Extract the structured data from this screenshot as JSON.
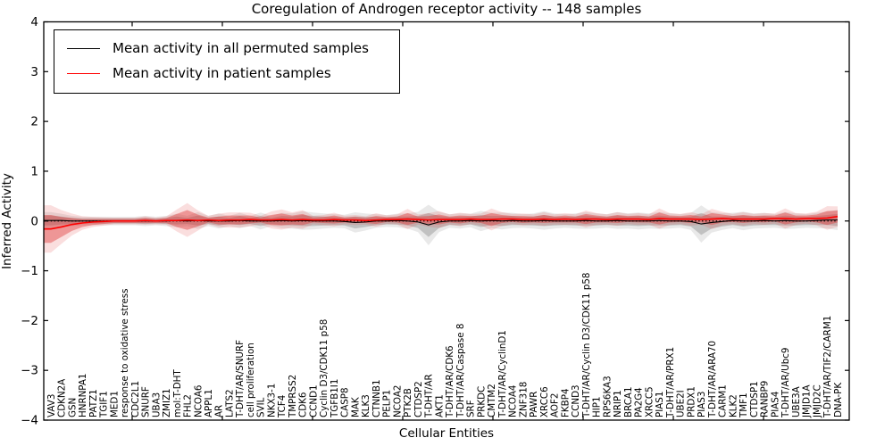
{
  "figure": {
    "title": "Coregulation of Androgen receptor activity -- 148 samples",
    "xlabel": "Cellular Entities",
    "ylabel": "Inferred Activity"
  },
  "legend": {
    "entries": [
      {
        "label": "Mean activity in all permuted samples",
        "color": "#000000"
      },
      {
        "label": "Mean activity in patient samples",
        "color": "#ff0000"
      }
    ]
  },
  "chart_data": {
    "type": "line",
    "title": "Coregulation of Androgen receptor activity -- 148 samples",
    "xlabel": "Cellular Entities",
    "ylabel": "Inferred Activity",
    "ylim": [
      -4,
      4
    ],
    "ytick_labels": [
      "4",
      "3",
      "2",
      "1",
      "0",
      "−1",
      "−2",
      "−3",
      "−4"
    ],
    "grid": false,
    "legend_position": "upper left",
    "zero_line_style": "dotted",
    "sample_count": 148,
    "categories": [
      "VAV3",
      "CDKN2A",
      "GSN",
      "HNRNPA1",
      "PATZ1",
      "TGIF1",
      "MED1",
      "response to oxidative stress",
      "CDC2L1",
      "SNURF",
      "UBA3",
      "ZMIZ1",
      "mol:T-DHT",
      "FHL2",
      "NCOA6",
      "APPL1",
      "AR",
      "LATS2",
      "T-DHT/AR/SNURF",
      "cell proliferation",
      "SVIL",
      "NKX3-1",
      "TCF4",
      "TMPRSS2",
      "CDK6",
      "CCND1",
      "Cyclin D3/CDK11 p58",
      "TGFB1I1",
      "CASP8",
      "MAK",
      "KLK3",
      "CTNNB1",
      "PELP1",
      "NCOA2",
      "PTK2B",
      "CTDSP2",
      "T-DHT/AR",
      "AKT1",
      "T-DHT/AR/CDK6",
      "T-DHT/AR/Caspase 8",
      "SRF",
      "PRKDC",
      "CMTM2",
      "T-DHT/AR/CyclinD1",
      "NCOA4",
      "ZNF318",
      "PAWR",
      "XRCC6",
      "AOF2",
      "FKBP4",
      "CCND3",
      "T-DHT/AR/Cyclin D3/CDK11 p58",
      "HIP1",
      "RPS6KA3",
      "NRIP1",
      "BRCA1",
      "PA2G4",
      "XRCC5",
      "PIAS1",
      "T-DHT/AR/PRX1",
      "UBE2I",
      "PRDX1",
      "PIAS3",
      "T-DHT/AR/ARA70",
      "CARM1",
      "KLK2",
      "TMF1",
      "CTDSP1",
      "RANBP9",
      "PIAS4",
      "T-DHT/AR/Ubc9",
      "UBE3A",
      "JMJD1A",
      "JMJD2C",
      "T-DHT/AR/TIF2/CARM1",
      "DNA-PK"
    ],
    "series": [
      {
        "name": "Mean activity in all permuted samples",
        "color": "#000000",
        "band_color": "#999999",
        "values": [
          0.01,
          0.01,
          0,
          0,
          0,
          0,
          0,
          0,
          0,
          0,
          0,
          0,
          0.01,
          0,
          0.01,
          0,
          0,
          0,
          0.01,
          0,
          0,
          0,
          0.01,
          0,
          0.01,
          0,
          0,
          0,
          -0.01,
          -0.03,
          -0.02,
          0,
          0,
          0.01,
          0,
          -0.02,
          -0.08,
          -0.02,
          0,
          0,
          0.01,
          0,
          0.01,
          0,
          0.01,
          0,
          0,
          0.01,
          0,
          0,
          0,
          0.01,
          0,
          0,
          0.01,
          0,
          0,
          0,
          0.01,
          0,
          0,
          -0.01,
          -0.06,
          -0.03,
          -0.01,
          0.01,
          0,
          0,
          0.01,
          0,
          0.01,
          0,
          0,
          0.01,
          0.02,
          0.02
        ],
        "band": [
          0.1,
          0.08,
          0.06,
          0.05,
          0.05,
          0.05,
          0.05,
          0.05,
          0.05,
          0.06,
          0.05,
          0.06,
          0.08,
          0.06,
          0.1,
          0.06,
          0.09,
          0.06,
          0.09,
          0.06,
          0.1,
          0.06,
          0.09,
          0.09,
          0.11,
          0.1,
          0.09,
          0.08,
          0.08,
          0.12,
          0.1,
          0.08,
          0.07,
          0.08,
          0.09,
          0.12,
          0.24,
          0.12,
          0.08,
          0.09,
          0.08,
          0.12,
          0.09,
          0.1,
          0.09,
          0.08,
          0.09,
          0.11,
          0.09,
          0.08,
          0.09,
          0.1,
          0.09,
          0.08,
          0.1,
          0.09,
          0.1,
          0.09,
          0.1,
          0.09,
          0.08,
          0.1,
          0.22,
          0.12,
          0.1,
          0.09,
          0.11,
          0.09,
          0.09,
          0.08,
          0.1,
          0.09,
          0.08,
          0.09,
          0.1,
          0.12
        ]
      },
      {
        "name": "Mean activity in patient samples",
        "color": "#ff0000",
        "band_color": "#dd3333",
        "values": [
          -0.16,
          -0.12,
          -0.07,
          -0.04,
          -0.02,
          -0.01,
          0,
          0,
          0,
          0.01,
          0,
          0.01,
          0.01,
          0.02,
          0.01,
          0.02,
          0.01,
          0.02,
          0.02,
          0.03,
          0.02,
          0.02,
          0.03,
          0.02,
          0.03,
          0.02,
          0.02,
          0.03,
          0.02,
          0.02,
          0.01,
          0.02,
          0.03,
          0.03,
          0.04,
          0.03,
          0.02,
          0.03,
          0.03,
          0.03,
          0.04,
          0.03,
          0.03,
          0.04,
          0.04,
          0.03,
          0.03,
          0.04,
          0.03,
          0.04,
          0.03,
          0.04,
          0.04,
          0.03,
          0.04,
          0.04,
          0.04,
          0.03,
          0.05,
          0.04,
          0.04,
          0.04,
          0.03,
          0.04,
          0.05,
          0.04,
          0.04,
          0.04,
          0.04,
          0.05,
          0.05,
          0.04,
          0.05,
          0.05,
          0.06,
          0.09
        ],
        "band": [
          0.28,
          0.2,
          0.13,
          0.08,
          0.06,
          0.05,
          0.04,
          0.04,
          0.04,
          0.05,
          0.04,
          0.05,
          0.13,
          0.2,
          0.12,
          0.05,
          0.08,
          0.09,
          0.09,
          0.08,
          0.05,
          0.1,
          0.12,
          0.09,
          0.11,
          0.05,
          0.06,
          0.08,
          0.05,
          0.06,
          0.05,
          0.08,
          0.05,
          0.06,
          0.12,
          0.06,
          0.08,
          0.1,
          0.06,
          0.08,
          0.06,
          0.07,
          0.13,
          0.08,
          0.06,
          0.07,
          0.06,
          0.08,
          0.06,
          0.07,
          0.06,
          0.1,
          0.07,
          0.06,
          0.08,
          0.06,
          0.07,
          0.06,
          0.12,
          0.07,
          0.06,
          0.08,
          0.06,
          0.12,
          0.08,
          0.06,
          0.08,
          0.06,
          0.07,
          0.06,
          0.12,
          0.07,
          0.06,
          0.08,
          0.14,
          0.12
        ]
      }
    ]
  }
}
